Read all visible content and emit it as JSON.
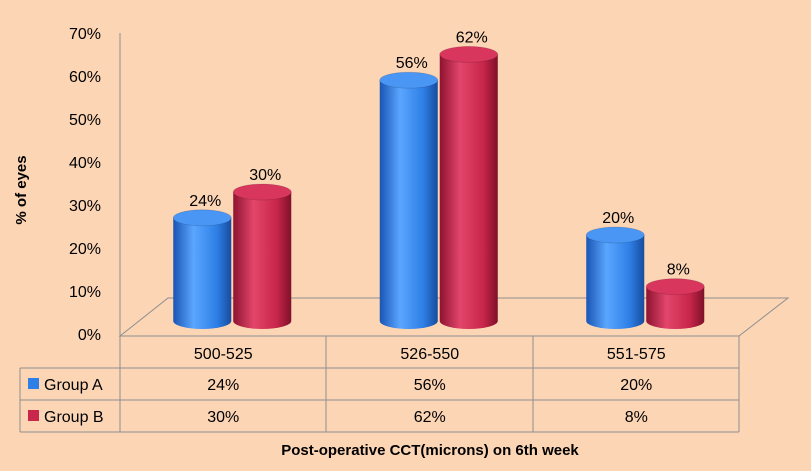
{
  "chart_data": {
    "type": "bar",
    "style": "3d-cylinder",
    "categories": [
      "500-525",
      "526-550",
      "551-575"
    ],
    "series": [
      {
        "name": "Group A",
        "values": [
          24,
          56,
          20
        ],
        "labels": [
          "24%",
          "56%",
          "20%"
        ],
        "color": "#2E7FE6"
      },
      {
        "name": "Group B",
        "values": [
          30,
          62,
          8
        ],
        "labels": [
          "30%",
          "62%",
          "8%"
        ],
        "color": "#C8264A"
      }
    ],
    "y_ticks": [
      "0%",
      "10%",
      "20%",
      "30%",
      "40%",
      "50%",
      "60%",
      "70%"
    ],
    "ylim": [
      0,
      70
    ],
    "ylabel": "% of eyes",
    "xlabel": "Post-operative CCT(microns) on 6th week",
    "legend": "data-table",
    "grid": false,
    "background": "#FCD5B5"
  }
}
